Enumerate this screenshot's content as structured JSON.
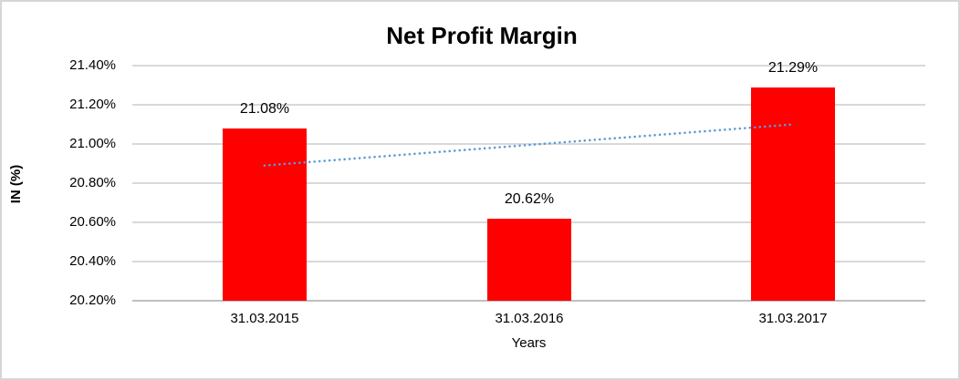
{
  "chart_data": {
    "type": "bar",
    "title": "Net Profit Margin",
    "xlabel": "Years",
    "ylabel": "IN (%)",
    "categories": [
      "31.03.2015",
      "31.03.2016",
      "31.03.2017"
    ],
    "values": [
      21.08,
      20.62,
      21.29
    ],
    "data_labels": [
      "21.08%",
      "20.62%",
      "21.29%"
    ],
    "ytick_values": [
      20.2,
      20.4,
      20.6,
      20.8,
      21.0,
      21.2,
      21.4
    ],
    "ytick_labels": [
      "20.20%",
      "20.40%",
      "20.60%",
      "20.80%",
      "21.00%",
      "21.20%",
      "21.40%"
    ],
    "ylim": [
      20.2,
      21.4
    ],
    "grid": true,
    "legend": false,
    "bar_color": "#ff0000",
    "gridline_color": "#d9d9d9",
    "axis_line_color": "#bfbfbf",
    "text_color": "#000000",
    "frame_border_color": "#d6d6d6",
    "trendline": {
      "type": "linear",
      "style": "dotted",
      "color": "#5b9bd5",
      "start_value": 20.89,
      "end_value": 21.1
    }
  }
}
